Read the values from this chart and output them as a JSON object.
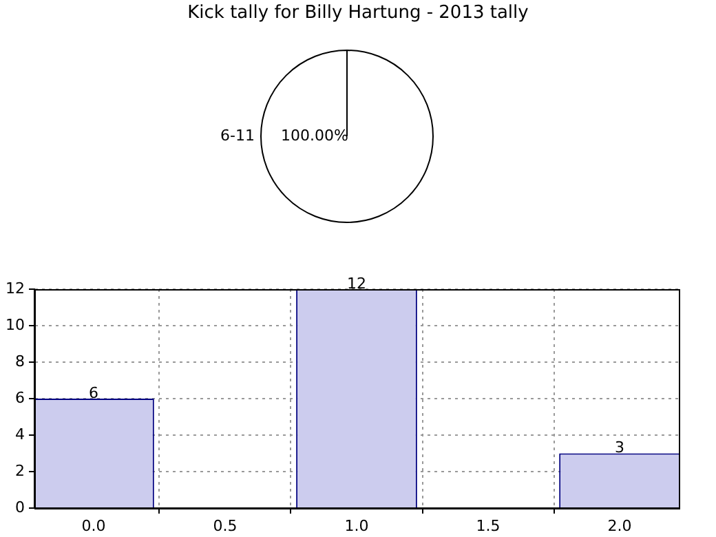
{
  "chart_data": [
    {
      "type": "pie",
      "title": "Kick tally for Billy Hartung - 2013 tally",
      "categories": [
        "6-11"
      ],
      "values": [
        100
      ],
      "colors": [
        "#ffffff"
      ],
      "value_labels": [
        "100.00%"
      ]
    },
    {
      "type": "bar",
      "x": [
        0,
        1,
        2
      ],
      "values": [
        6,
        12,
        3
      ],
      "color": "#ccccee",
      "xlim": [
        -0.225,
        2.225
      ],
      "xticks": [
        {
          "value": 0,
          "label": "0.0"
        },
        {
          "value": 0.5,
          "label": "0.5"
        },
        {
          "value": 1,
          "label": "1.0"
        },
        {
          "value": 1.5,
          "label": "1.5"
        },
        {
          "value": 2,
          "label": "2.0"
        }
      ],
      "ylim": [
        0,
        12
      ],
      "yticks": [
        0,
        2,
        4,
        6,
        8,
        10,
        12
      ],
      "grid": true,
      "data_labels": true
    }
  ]
}
